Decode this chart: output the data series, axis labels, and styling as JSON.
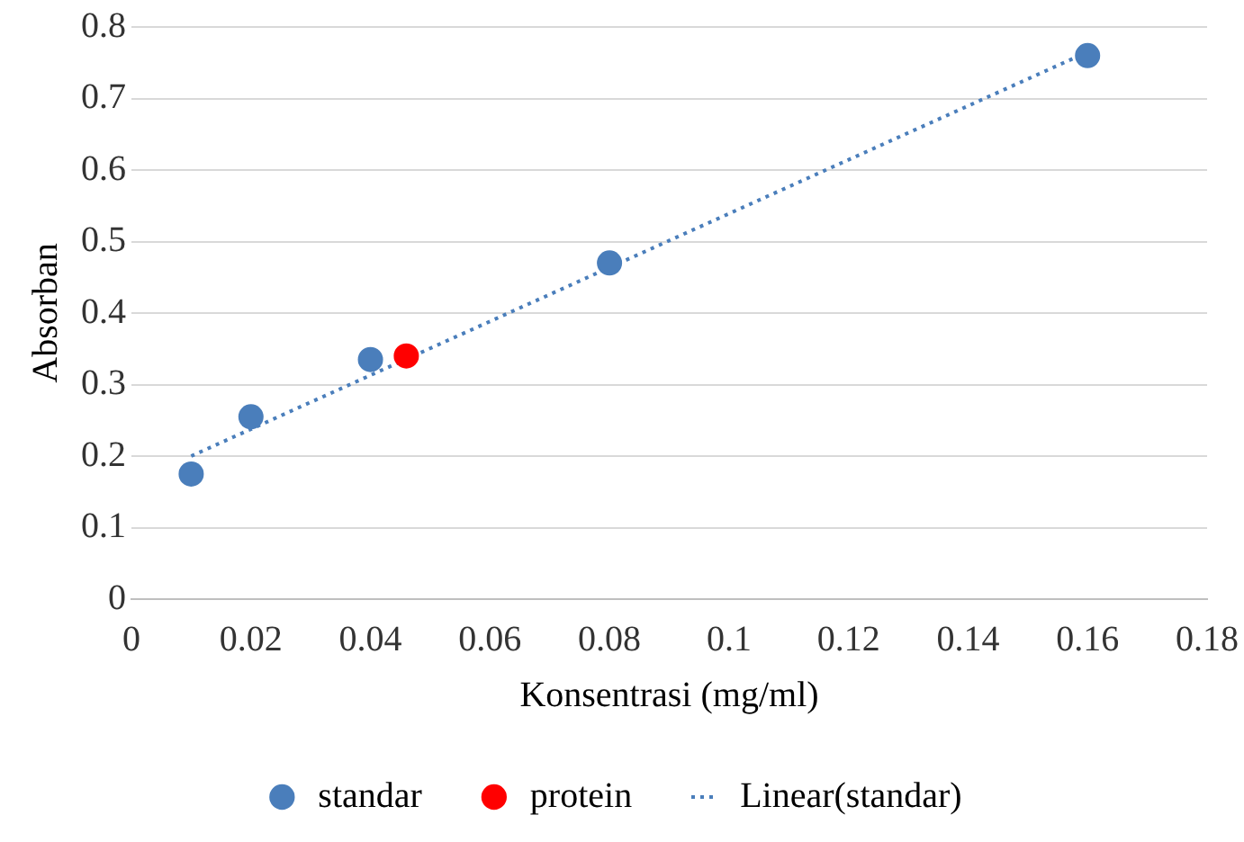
{
  "chart_data": {
    "type": "scatter",
    "xlabel": "Konsentrasi (mg/ml)",
    "ylabel": "Absorban",
    "xlim": [
      0,
      0.18
    ],
    "xticks": [
      0,
      0.02,
      0.04,
      0.06,
      0.08,
      0.1,
      0.12,
      0.14,
      0.16,
      0.18
    ],
    "ylim": [
      0,
      0.8
    ],
    "yticks": [
      0,
      0.1,
      0.2,
      0.3,
      0.4,
      0.5,
      0.6,
      0.7,
      0.8
    ],
    "grid": "y",
    "legend": "bottom",
    "marker": "circle",
    "series": [
      {
        "name": "standar",
        "color": "#4a7ebb",
        "x": [
          0.01,
          0.02,
          0.04,
          0.08,
          0.16
        ],
        "values": [
          0.175,
          0.255,
          0.335,
          0.47,
          0.76
        ]
      },
      {
        "name": "protein",
        "color": "#ff0000",
        "x": [
          0.046
        ],
        "values": [
          0.34
        ]
      },
      {
        "name": "Linear(standar)",
        "type": "line",
        "color": "#4a7ebb",
        "marker": "none",
        "line_style": "dotted",
        "x": [
          0.01,
          0.16
        ],
        "values": [
          0.2,
          0.765
        ]
      }
    ]
  }
}
